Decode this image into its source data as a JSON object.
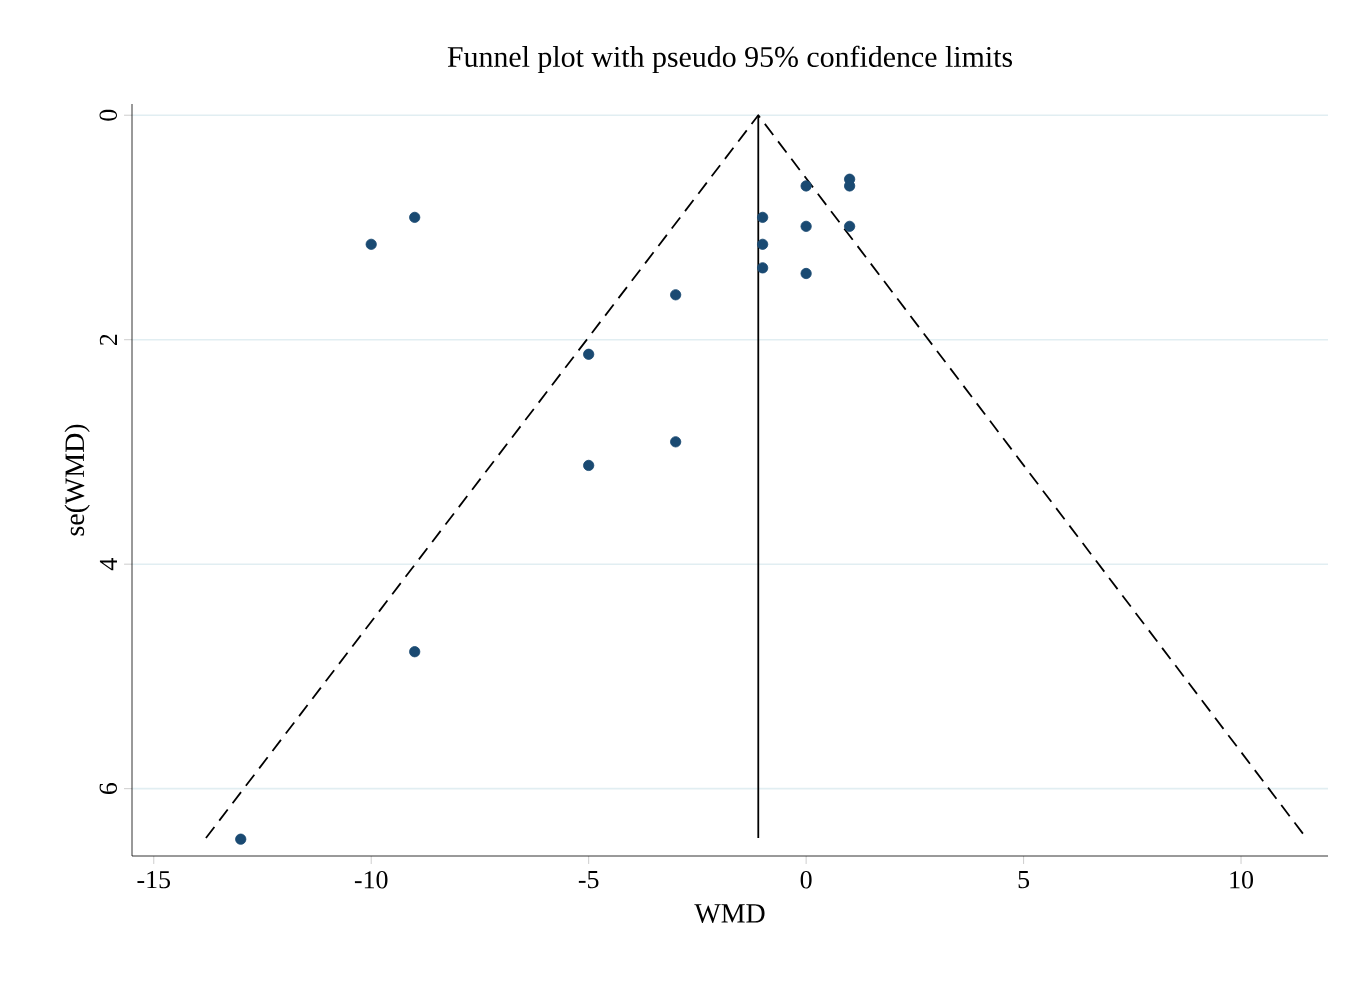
{
  "chart_data": {
    "type": "scatter",
    "title": "Funnel plot with pseudo 95% confidence limits",
    "xlabel": "WMD",
    "ylabel": "se(WMD)",
    "xlim": [
      -15.5,
      12
    ],
    "ylim": [
      6.6,
      -0.1
    ],
    "xticks": [
      -15,
      -10,
      -5,
      0,
      5,
      10
    ],
    "yticks": [
      0,
      2,
      4,
      6
    ],
    "grid": "y",
    "series": [
      {
        "marker": "circle",
        "color": "#1a4a72",
        "x": [
          1,
          1,
          0,
          -9,
          -10,
          -1,
          0,
          1,
          -1,
          -1,
          0,
          -3,
          -5,
          -3,
          -5,
          -9,
          -13
        ],
        "values": [
          0.57,
          0.63,
          0.63,
          0.91,
          1.15,
          0.91,
          0.99,
          0.99,
          1.15,
          1.36,
          1.41,
          1.6,
          2.13,
          2.91,
          3.12,
          4.78,
          6.45
        ]
      },
      {
        "type": "line",
        "color": "#000000",
        "line_style": "dashed",
        "marker": "none",
        "x": [
          -13.8,
          -1.1,
          11.5
        ],
        "values": [
          6.44,
          0,
          6.44
        ]
      },
      {
        "type": "line",
        "color": "#000000",
        "line_style": "solid",
        "marker": "none",
        "x": [
          -1.1,
          -1.1
        ],
        "values": [
          0,
          6.44
        ]
      }
    ]
  }
}
